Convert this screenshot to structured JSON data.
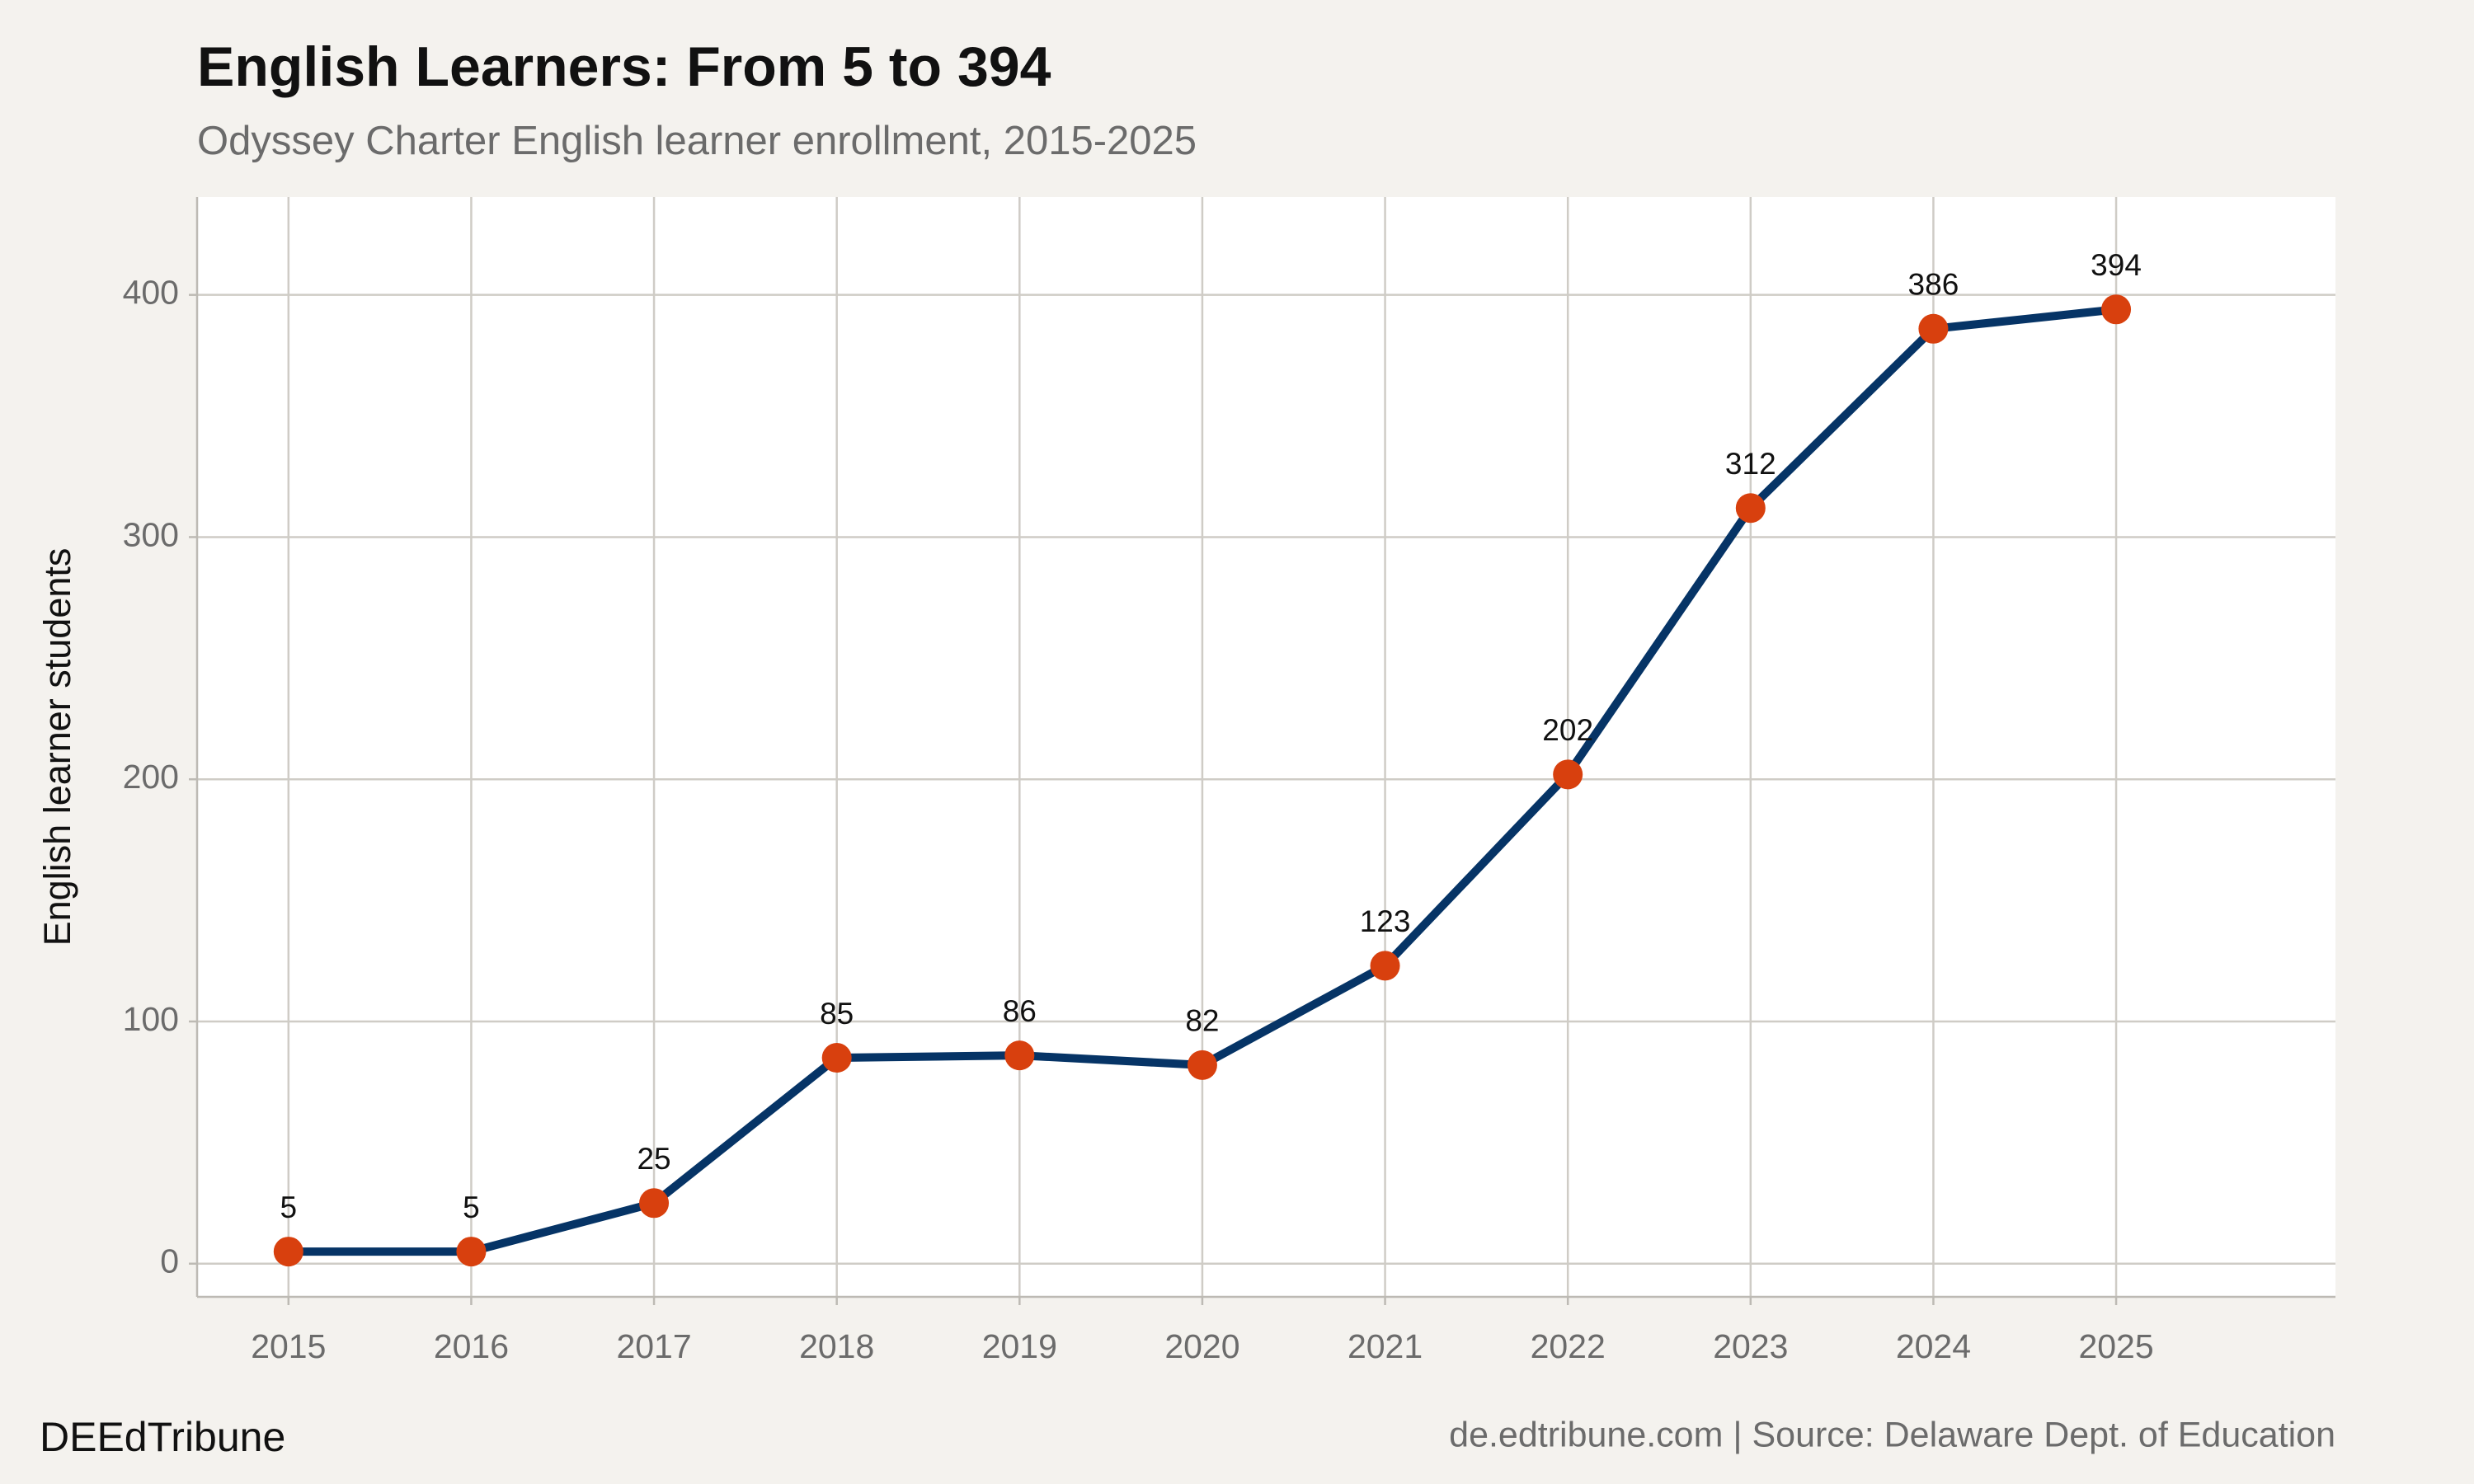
{
  "chart_data": {
    "type": "line",
    "title": "English Learners: From 5 to 394",
    "subtitle": "Odyssey Charter English learner enrollment, 2015-2025",
    "y_label": "English learner students",
    "brand": "DEEdTribune",
    "caption": "de.edtribune.com | Source: Delaware Dept. of Education",
    "x": [
      2015,
      2016,
      2017,
      2018,
      2019,
      2020,
      2021,
      2022,
      2023,
      2024,
      2025
    ],
    "values": [
      5,
      5,
      25,
      85,
      86,
      82,
      123,
      202,
      312,
      386,
      394
    ],
    "color": "#063466",
    "marker_color": "#d8400e",
    "xlim": [
      2014.5,
      2026.2
    ],
    "ylim": [
      -13.7,
      440.4
    ],
    "xticks": [
      2015,
      2016,
      2017,
      2018,
      2019,
      2020,
      2021,
      2022,
      2023,
      2024,
      2025
    ],
    "yticks": [
      0,
      100,
      200,
      300,
      400
    ],
    "grid": true
  }
}
